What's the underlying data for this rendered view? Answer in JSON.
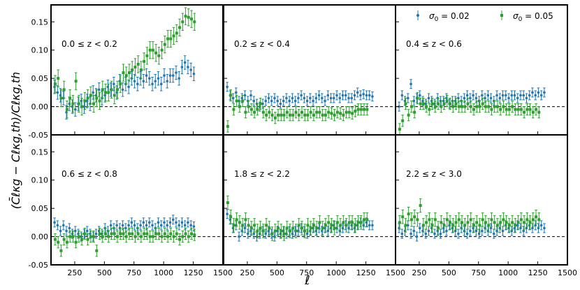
{
  "figure": {
    "ylabel": "(C̄ℓκg − Cℓκg,th)/Cℓκg,th",
    "ylabel_main": "(C",
    "ylabel_bar": "C",
    "xlabel": "ℓ",
    "colors": {
      "s002": "#1f77b4",
      "s005": "#2ca02c"
    }
  },
  "legend": {
    "placement": "upper-right of top-right panel",
    "entries": [
      {
        "label": "σ0 = 0.02",
        "sym": "σ",
        "sub": "0",
        "rest": " = 0.02",
        "color": "#1f77b4"
      },
      {
        "label": "σ0 = 0.05",
        "sym": "σ",
        "sub": "0",
        "rest": " = 0.05",
        "color": "#2ca02c"
      }
    ]
  },
  "chart_data": [
    {
      "type": "scatter",
      "panel": 1,
      "row": 0,
      "col": 0,
      "zlabel": "0.0  ≤ z <  0.2",
      "xlim": [
        50,
        1500
      ],
      "ylim": [
        -0.05,
        0.18
      ],
      "xticks": [
        250,
        500,
        750,
        1000,
        1250,
        1500
      ],
      "yticks": [
        -0.05,
        0.0,
        0.05,
        0.1,
        0.15
      ],
      "series": [
        {
          "key": "s002",
          "start": 80,
          "step": 25,
          "err": 0.012,
          "values": [
            0.035,
            0.025,
            0.02,
            0.015,
            -0.01,
            0.005,
            0.0,
            -0.005,
            0.005,
            0.01,
            0.0,
            0.01,
            0.005,
            0.025,
            0.02,
            0.03,
            0.015,
            0.02,
            0.035,
            0.03,
            0.04,
            0.025,
            0.045,
            0.03,
            0.04,
            0.035,
            0.05,
            0.045,
            0.04,
            0.05,
            0.045,
            0.055,
            0.05,
            0.04,
            0.045,
            0.05,
            0.04,
            0.055,
            0.045,
            0.055,
            0.055,
            0.06,
            0.05,
            0.07,
            0.078,
            0.07,
            0.065,
            0.058
          ]
        },
        {
          "key": "s005",
          "start": 85,
          "step": 25,
          "err": 0.015,
          "values": [
            0.04,
            0.05,
            0.015,
            0.03,
            -0.005,
            0.015,
            0.005,
            0.045,
            0.005,
            0.0,
            0.01,
            0.015,
            0.02,
            0.005,
            0.015,
            0.01,
            0.03,
            0.025,
            0.025,
            0.03,
            0.02,
            0.03,
            0.04,
            0.06,
            0.055,
            0.06,
            0.065,
            0.07,
            0.075,
            0.065,
            0.08,
            0.09,
            0.1,
            0.1,
            0.095,
            0.09,
            0.1,
            0.11,
            0.12,
            0.12,
            0.125,
            0.13,
            0.14,
            0.15,
            0.16,
            0.158,
            0.155,
            0.15
          ]
        }
      ]
    },
    {
      "type": "scatter",
      "panel": 2,
      "row": 0,
      "col": 1,
      "zlabel": "0.2  ≤ z <  0.4",
      "xlim": [
        50,
        1500
      ],
      "ylim": [
        -0.05,
        0.18
      ],
      "xticks": [
        250,
        500,
        750,
        1000,
        1250,
        1500
      ],
      "yticks": [
        -0.05,
        0.0,
        0.05,
        0.1,
        0.15
      ],
      "series": [
        {
          "key": "s002",
          "start": 80,
          "step": 25,
          "err": 0.008,
          "values": [
            0.035,
            0.02,
            0.015,
            0.025,
            0.01,
            0.015,
            0.02,
            0.01,
            0.02,
            0.01,
            0.005,
            0.0,
            0.005,
            0.01,
            0.015,
            0.01,
            0.015,
            0.01,
            0.005,
            0.01,
            0.015,
            0.01,
            0.015,
            0.01,
            0.015,
            0.02,
            0.015,
            0.01,
            0.015,
            0.01,
            0.015,
            0.02,
            0.015,
            0.01,
            0.02,
            0.015,
            0.015,
            0.02,
            0.015,
            0.02,
            0.02,
            0.015,
            0.015,
            0.02,
            0.025,
            0.02,
            0.022,
            0.02,
            0.02,
            0.018
          ]
        },
        {
          "key": "s005",
          "start": 85,
          "step": 25,
          "err": 0.01,
          "values": [
            -0.035,
            0.02,
            -0.005,
            0.01,
            0.0,
            0.01,
            -0.01,
            0.0,
            -0.005,
            -0.01,
            -0.005,
            0.005,
            -0.01,
            -0.015,
            -0.01,
            -0.015,
            -0.02,
            -0.015,
            -0.015,
            -0.015,
            -0.01,
            -0.015,
            -0.015,
            -0.01,
            -0.015,
            -0.01,
            -0.015,
            -0.015,
            -0.01,
            -0.015,
            -0.01,
            -0.01,
            -0.015,
            -0.015,
            -0.01,
            -0.012,
            -0.015,
            -0.01,
            -0.012,
            -0.015,
            -0.01,
            -0.01,
            -0.012,
            -0.008,
            -0.005,
            -0.005,
            -0.005,
            -0.005
          ]
        }
      ]
    },
    {
      "type": "scatter",
      "panel": 3,
      "row": 0,
      "col": 2,
      "zlabel": "0.4  ≤ z <  0.6",
      "xlim": [
        50,
        1500
      ],
      "ylim": [
        -0.05,
        0.18
      ],
      "xticks": [
        250,
        500,
        750,
        1000,
        1250,
        1500
      ],
      "yticks": [
        -0.05,
        0.0,
        0.05,
        0.1,
        0.15
      ],
      "series": [
        {
          "key": "s002",
          "start": 80,
          "step": 25,
          "err": 0.008,
          "values": [
            0.0,
            0.02,
            0.01,
            0.015,
            0.04,
            0.01,
            0.015,
            0.02,
            0.01,
            0.005,
            0.015,
            0.01,
            0.005,
            0.015,
            0.01,
            0.01,
            0.015,
            0.005,
            0.01,
            0.01,
            0.015,
            0.01,
            0.015,
            0.02,
            0.015,
            0.02,
            0.015,
            0.01,
            0.02,
            0.015,
            0.02,
            0.015,
            0.01,
            0.02,
            0.015,
            0.02,
            0.02,
            0.015,
            0.02,
            0.02,
            0.015,
            0.02,
            0.02,
            0.015,
            0.02,
            0.025,
            0.02,
            0.025,
            0.02,
            0.025
          ]
        },
        {
          "key": "s005",
          "start": 85,
          "step": 25,
          "err": 0.01,
          "values": [
            -0.04,
            -0.025,
            0.005,
            -0.015,
            0.0,
            -0.01,
            0.015,
            0.005,
            0.005,
            0.0,
            -0.005,
            0.005,
            0.0,
            0.005,
            0.0,
            0.005,
            0.01,
            0.005,
            0.0,
            0.005,
            0.0,
            0.0,
            0.0,
            0.005,
            0.0,
            -0.005,
            0.0,
            0.0,
            0.005,
            0.0,
            0.0,
            -0.005,
            0.0,
            0.0,
            -0.005,
            0.0,
            -0.005,
            -0.005,
            0.0,
            -0.005,
            -0.005,
            -0.005,
            -0.01,
            -0.005,
            -0.005,
            -0.01,
            -0.005,
            -0.01
          ]
        }
      ]
    },
    {
      "type": "scatter",
      "panel": 4,
      "row": 1,
      "col": 0,
      "zlabel": "0.6  ≤ z <  0.8",
      "xlim": [
        50,
        1500
      ],
      "ylim": [
        -0.05,
        0.18
      ],
      "xticks": [
        250,
        500,
        750,
        1000,
        1250,
        1500
      ],
      "yticks": [
        -0.05,
        0.0,
        0.05,
        0.1,
        0.15
      ],
      "series": [
        {
          "key": "s002",
          "start": 80,
          "step": 25,
          "err": 0.008,
          "values": [
            0.025,
            0.02,
            0.01,
            0.02,
            0.01,
            0.015,
            0.005,
            0.01,
            0.005,
            0.0,
            0.005,
            0.01,
            0.005,
            0.0,
            0.005,
            0.01,
            0.005,
            0.015,
            0.01,
            0.02,
            0.015,
            0.02,
            0.015,
            0.02,
            0.015,
            0.02,
            0.025,
            0.02,
            0.015,
            0.02,
            0.025,
            0.02,
            0.025,
            0.02,
            0.015,
            0.025,
            0.02,
            0.025,
            0.02,
            0.025,
            0.03,
            0.025,
            0.02,
            0.025,
            0.02,
            0.025,
            0.02,
            0.018
          ]
        },
        {
          "key": "s005",
          "start": 85,
          "step": 25,
          "err": 0.01,
          "values": [
            -0.005,
            -0.01,
            -0.025,
            -0.005,
            -0.01,
            0.0,
            0.0,
            -0.01,
            0.0,
            -0.005,
            0.005,
            -0.005,
            0.0,
            0.0,
            -0.025,
            0.005,
            0.0,
            0.005,
            0.0,
            0.005,
            0.005,
            0.0,
            0.005,
            0.005,
            0.0,
            0.005,
            0.005,
            0.0,
            0.005,
            0.0,
            0.005,
            0.005,
            0.0,
            0.0,
            0.005,
            0.005,
            0.0,
            0.005,
            0.0,
            0.005,
            0.0,
            0.005,
            -0.005,
            0.0,
            0.005,
            0.0,
            0.005,
            0.003
          ]
        }
      ]
    },
    {
      "type": "scatter",
      "panel": 5,
      "row": 1,
      "col": 1,
      "zlabel": "1.8  ≤ z <  2.2",
      "xlim": [
        50,
        1500
      ],
      "ylim": [
        -0.05,
        0.18
      ],
      "xticks": [
        250,
        500,
        750,
        1000,
        1250,
        1500
      ],
      "yticks": [
        -0.05,
        0.0,
        0.05,
        0.1,
        0.15
      ],
      "series": [
        {
          "key": "s002",
          "start": 80,
          "step": 25,
          "err": 0.008,
          "values": [
            0.04,
            0.03,
            0.015,
            0.02,
            0.0,
            0.01,
            0.015,
            0.005,
            0.01,
            0.005,
            0.0,
            0.005,
            0.01,
            0.005,
            0.01,
            0.005,
            0.0,
            0.01,
            0.005,
            0.01,
            0.005,
            0.01,
            0.005,
            0.01,
            0.01,
            0.015,
            0.01,
            0.005,
            0.01,
            0.015,
            0.01,
            0.015,
            0.01,
            0.015,
            0.01,
            0.015,
            0.02,
            0.015,
            0.01,
            0.015,
            0.02,
            0.015,
            0.02,
            0.015,
            0.02,
            0.025,
            0.02,
            0.025,
            0.02,
            0.02
          ]
        },
        {
          "key": "s005",
          "start": 85,
          "step": 25,
          "err": 0.012,
          "values": [
            0.06,
            0.035,
            0.02,
            0.03,
            0.025,
            0.02,
            0.03,
            0.02,
            0.015,
            0.02,
            0.01,
            0.015,
            0.01,
            0.02,
            0.015,
            0.005,
            0.01,
            0.015,
            0.01,
            0.005,
            0.015,
            0.01,
            0.015,
            0.01,
            0.02,
            0.015,
            0.01,
            0.02,
            0.015,
            0.02,
            0.015,
            0.025,
            0.015,
            0.02,
            0.025,
            0.02,
            0.015,
            0.025,
            0.02,
            0.025,
            0.02,
            0.025,
            0.025,
            0.02,
            0.025,
            0.025,
            0.03,
            0.03
          ]
        }
      ]
    },
    {
      "type": "scatter",
      "panel": 6,
      "row": 1,
      "col": 2,
      "zlabel": "2.2  ≤ z <  3.0",
      "xlim": [
        50,
        1500
      ],
      "ylim": [
        -0.05,
        0.18
      ],
      "xticks": [
        250,
        500,
        750,
        1000,
        1250,
        1500
      ],
      "yticks": [
        -0.05,
        0.0,
        0.05,
        0.1,
        0.15
      ],
      "series": [
        {
          "key": "s002",
          "start": 80,
          "step": 25,
          "err": 0.008,
          "values": [
            0.015,
            0.005,
            0.01,
            0.02,
            0.005,
            0.01,
            0.0,
            0.015,
            0.01,
            0.005,
            0.01,
            0.015,
            0.005,
            0.01,
            0.005,
            0.015,
            0.01,
            0.02,
            0.015,
            0.01,
            0.005,
            0.015,
            0.01,
            0.005,
            0.01,
            0.015,
            0.01,
            0.005,
            0.01,
            0.015,
            0.01,
            0.015,
            0.005,
            0.01,
            0.015,
            0.01,
            0.02,
            0.015,
            0.01,
            0.015,
            0.02,
            0.015,
            0.01,
            0.015,
            0.02,
            0.015,
            0.02,
            0.015,
            0.02,
            0.015
          ]
        },
        {
          "key": "s005",
          "start": 85,
          "step": 25,
          "err": 0.012,
          "values": [
            0.025,
            0.035,
            0.02,
            0.04,
            0.03,
            0.035,
            0.03,
            0.055,
            0.02,
            0.025,
            0.03,
            0.02,
            0.03,
            0.015,
            0.025,
            0.02,
            0.03,
            0.025,
            0.02,
            0.025,
            0.03,
            0.025,
            0.02,
            0.025,
            0.03,
            0.02,
            0.025,
            0.02,
            0.03,
            0.025,
            0.02,
            0.03,
            0.025,
            0.02,
            0.025,
            0.03,
            0.025,
            0.02,
            0.025,
            0.02,
            0.025,
            0.03,
            0.025,
            0.03,
            0.025,
            0.03,
            0.035,
            0.03
          ]
        }
      ]
    }
  ]
}
